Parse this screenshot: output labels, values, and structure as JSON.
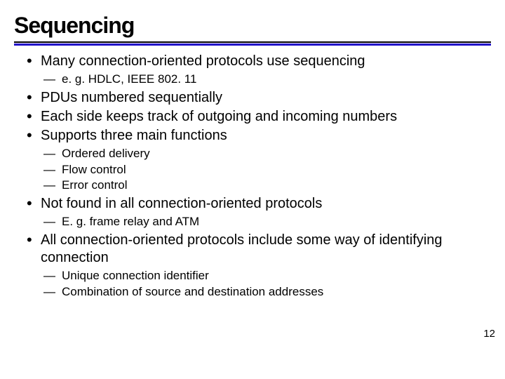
{
  "slide": {
    "title": "Sequencing",
    "page_number": "12",
    "colors": {
      "accent": "#2008c8",
      "text": "#000000",
      "background": "#ffffff",
      "rule": "#000000"
    },
    "fonts": {
      "title_family": "Arial Black",
      "title_size_pt": 32,
      "body_size_pt": 20,
      "sub_size_pt": 17
    },
    "bullets": [
      {
        "text": "Many connection-oriented protocols use sequencing",
        "sub": [
          "e. g. HDLC, IEEE 802. 11"
        ]
      },
      {
        "text": "PDUs numbered sequentially",
        "sub": []
      },
      {
        "text": "Each side keeps track of outgoing and incoming numbers",
        "sub": []
      },
      {
        "text": "Supports three main functions",
        "sub": [
          "Ordered delivery",
          "Flow control",
          "Error control"
        ]
      },
      {
        "text": "Not found in all connection-oriented protocols",
        "sub": [
          "E. g. frame relay and ATM"
        ]
      },
      {
        "text": "All connection-oriented protocols include some way of identifying connection",
        "sub": [
          "Unique connection identifier",
          "Combination of source and destination addresses"
        ]
      }
    ]
  }
}
